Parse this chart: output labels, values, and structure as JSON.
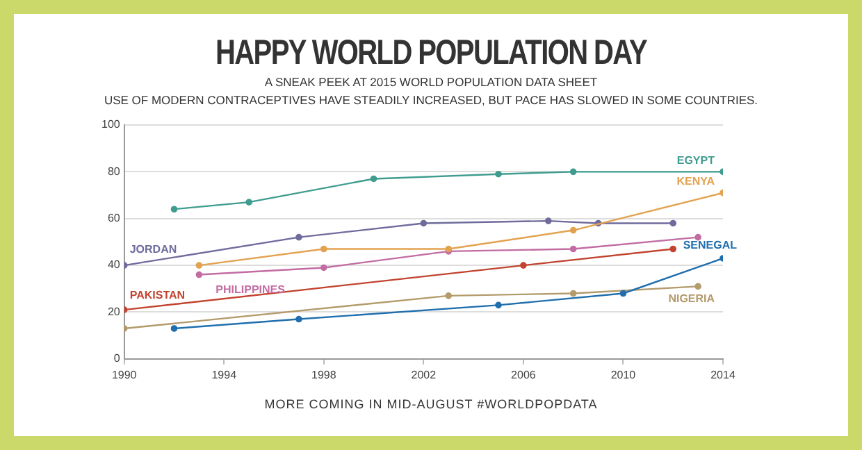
{
  "chart_data": {
    "type": "line",
    "title": "HAPPY WORLD POPULATION DAY",
    "subtitle": "A SNEAK PEEK AT 2015 WORLD POPULATION DATA SHEET\nUSE OF MODERN CONTRACEPTIVES HAVE STEADILY INCREASED, BUT PACE HAS SLOWED IN SOME COUNTRIES.",
    "annotations": [
      "MORE COMING IN MID-AUGUST #WORLDPOPDATA"
    ],
    "xlim": [
      1990,
      2014
    ],
    "xticks": [
      1990,
      1994,
      1998,
      2002,
      2006,
      2010,
      2014
    ],
    "ylim": [
      0,
      100
    ],
    "yticks": [
      0,
      20,
      40,
      60,
      80,
      100
    ],
    "grid": "y",
    "legend": false,
    "marker": "circle",
    "line_style": "solid",
    "series": [
      {
        "name": "EGYPT",
        "color": "#3f9c8e",
        "x": [
          1992,
          1995,
          2000,
          2005,
          2008,
          2014
        ],
        "values": [
          64,
          67,
          77,
          79,
          80,
          80
        ]
      },
      {
        "name": "KENYA",
        "color": "#e3a24f",
        "x": [
          1993,
          1998,
          2003,
          2008,
          2014
        ],
        "values": [
          40,
          47,
          47,
          55,
          71
        ]
      },
      {
        "name": "JORDAN",
        "color": "#6f6b9c",
        "x": [
          1990,
          1997,
          2002,
          2007,
          2009,
          2012
        ],
        "values": [
          40,
          52,
          58,
          59,
          58,
          58
        ]
      },
      {
        "name": "PHILIPPINES",
        "color": "#c26ca3",
        "x": [
          1993,
          1998,
          2003,
          2008,
          2013
        ],
        "values": [
          36,
          39,
          46,
          47,
          52
        ]
      },
      {
        "name": "PAKISTAN",
        "color": "#c2432f",
        "x": [
          1990,
          2006,
          2012
        ],
        "values": [
          21,
          40,
          47
        ]
      },
      {
        "name": "SENEGAL",
        "color": "#1f6fae",
        "x": [
          1992,
          1997,
          2005,
          2010,
          2014
        ],
        "values": [
          13,
          17,
          23,
          28,
          43
        ]
      },
      {
        "name": "NIGERIA",
        "color": "#b39b6b",
        "x": [
          1990,
          2003,
          2008,
          2013
        ],
        "values": [
          13,
          27,
          28,
          31
        ]
      }
    ]
  }
}
